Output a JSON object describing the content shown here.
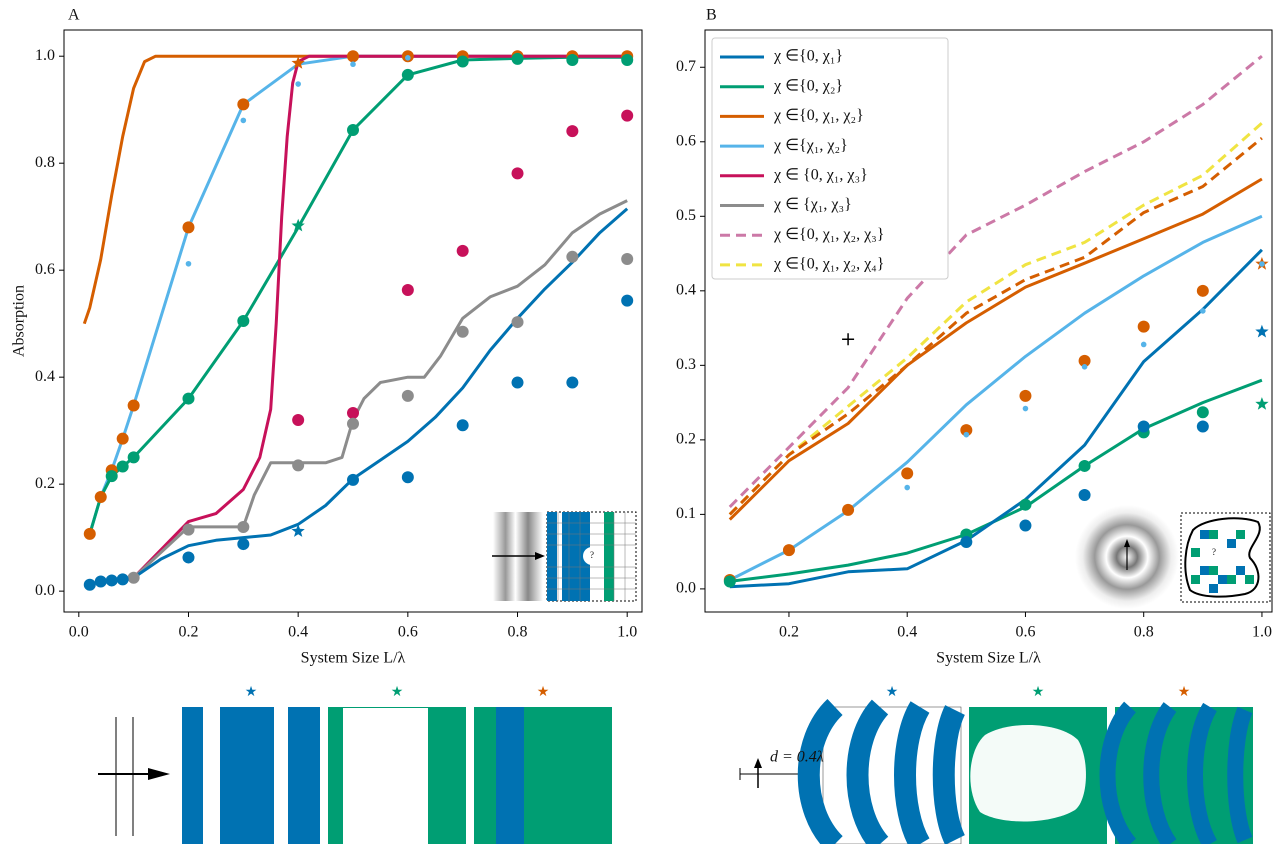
{
  "chart_data": [
    {
      "type": "line",
      "title": "A",
      "xlabel": "System Size L/λ",
      "ylabel": "Absorption",
      "inset_text": "?",
      "xlim": [
        -0.027,
        1.027
      ],
      "ylim": [
        -0.039,
        1.049
      ],
      "xticks": [
        {
          "value": 0,
          "label": "0.0"
        },
        0.2,
        0.4,
        0.6,
        0.8,
        {
          "value": 1,
          "label": "1.0"
        }
      ],
      "yticks": [
        {
          "value": 0,
          "label": "0.0"
        },
        0.2,
        0.4,
        0.6,
        0.8,
        {
          "value": 1,
          "label": "1.0"
        }
      ],
      "series": [
        {
          "kind": "line",
          "color": "#d55e00",
          "x": [
            0.01,
            0.02,
            0.04,
            0.06,
            0.08,
            0.1,
            0.12,
            0.14,
            0.2,
            0.3,
            0.4,
            0.5,
            0.6,
            0.7,
            0.8,
            0.9,
            1.0
          ],
          "values": [
            0.5,
            0.53,
            0.62,
            0.74,
            0.85,
            0.94,
            0.99,
            1.0,
            1.0,
            1.0,
            1.0,
            1.0,
            1.0,
            1.0,
            1.0,
            1.0,
            1.0
          ]
        },
        {
          "kind": "line",
          "color": "#56b4e9",
          "x": [
            0.02,
            0.04,
            0.06,
            0.08,
            0.1,
            0.2,
            0.3,
            0.4,
            0.5,
            0.6,
            0.7,
            0.8,
            0.9,
            1.0
          ],
          "values": [
            0.107,
            0.176,
            0.226,
            0.285,
            0.347,
            0.68,
            0.91,
            0.985,
            1.0,
            1.0,
            1.0,
            1.0,
            1.0,
            1.0
          ]
        },
        {
          "kind": "line",
          "color": "#009e73",
          "x": [
            0.02,
            0.04,
            0.06,
            0.08,
            0.1,
            0.2,
            0.3,
            0.4,
            0.5,
            0.6,
            0.7,
            0.8,
            0.9,
            1.0
          ],
          "values": [
            0.107,
            0.176,
            0.215,
            0.233,
            0.25,
            0.36,
            0.505,
            0.68,
            0.862,
            0.965,
            0.993,
            0.996,
            0.998,
            0.998
          ]
        },
        {
          "kind": "line",
          "color": "#c7115a",
          "x": [
            0.1,
            0.2,
            0.25,
            0.3,
            0.33,
            0.35,
            0.36,
            0.37,
            0.38,
            0.39,
            0.4,
            0.42,
            0.5,
            0.6,
            0.7,
            0.8,
            0.9,
            1.0
          ],
          "values": [
            0.025,
            0.13,
            0.145,
            0.19,
            0.25,
            0.34,
            0.5,
            0.7,
            0.85,
            0.95,
            0.99,
            1.0,
            1.0,
            1.0,
            1.0,
            1.0,
            1.0,
            1.0
          ]
        },
        {
          "kind": "line",
          "color": "#8c8c8c",
          "x": [
            0.1,
            0.2,
            0.3,
            0.32,
            0.35,
            0.45,
            0.48,
            0.5,
            0.52,
            0.55,
            0.6,
            0.63,
            0.66,
            0.7,
            0.75,
            0.8,
            0.85,
            0.9,
            0.95,
            1.0
          ],
          "values": [
            0.025,
            0.12,
            0.12,
            0.18,
            0.24,
            0.24,
            0.25,
            0.32,
            0.36,
            0.39,
            0.4,
            0.4,
            0.44,
            0.51,
            0.55,
            0.57,
            0.61,
            0.67,
            0.705,
            0.73
          ]
        },
        {
          "kind": "line",
          "color": "#0072b2",
          "x": [
            0.02,
            0.04,
            0.06,
            0.08,
            0.1,
            0.15,
            0.2,
            0.25,
            0.3,
            0.35,
            0.4,
            0.45,
            0.5,
            0.55,
            0.6,
            0.65,
            0.7,
            0.75,
            0.8,
            0.85,
            0.9,
            0.95,
            1.0
          ],
          "values": [
            0.012,
            0.018,
            0.02,
            0.022,
            0.025,
            0.06,
            0.085,
            0.095,
            0.1,
            0.105,
            0.125,
            0.16,
            0.21,
            0.245,
            0.28,
            0.325,
            0.38,
            0.45,
            0.51,
            0.565,
            0.615,
            0.67,
            0.715
          ]
        },
        {
          "kind": "dot",
          "color": "#d55e00",
          "x": [
            0.02,
            0.04,
            0.06,
            0.08,
            0.1,
            0.2,
            0.3,
            0.5,
            0.6,
            0.7,
            0.8,
            0.9,
            1.0
          ],
          "values": [
            0.107,
            0.176,
            0.226,
            0.285,
            0.347,
            0.68,
            0.91,
            1.0,
            1.0,
            1.0,
            1.0,
            1.0,
            1.0
          ]
        },
        {
          "kind": "star",
          "color": "#d55e00",
          "x": [
            0.4
          ],
          "values": [
            0.987
          ]
        },
        {
          "kind": "smalldot",
          "color": "#56b4e9",
          "x": [
            0.2,
            0.3,
            0.4,
            0.5,
            0.6
          ],
          "values": [
            0.612,
            0.88,
            0.948,
            0.985,
            0.997
          ]
        },
        {
          "kind": "dot",
          "color": "#009e73",
          "x": [
            0.06,
            0.08,
            0.1,
            0.2,
            0.3,
            0.5,
            0.6,
            0.7,
            0.8,
            0.9,
            1.0
          ],
          "values": [
            0.215,
            0.233,
            0.25,
            0.36,
            0.505,
            0.862,
            0.965,
            0.99,
            0.995,
            0.993,
            0.993
          ]
        },
        {
          "kind": "star",
          "color": "#009e73",
          "x": [
            0.4
          ],
          "values": [
            0.683
          ]
        },
        {
          "kind": "dot",
          "color": "#c7115a",
          "x": [
            0.4,
            0.5,
            0.6,
            0.7,
            0.8,
            0.9,
            1.0
          ],
          "values": [
            0.32,
            0.333,
            0.563,
            0.636,
            0.781,
            0.86,
            0.889
          ]
        },
        {
          "kind": "dot",
          "color": "#8c8c8c",
          "x": [
            0.1,
            0.2,
            0.3,
            0.4,
            0.5,
            0.6,
            0.7,
            0.8,
            0.9,
            1.0
          ],
          "values": [
            0.025,
            0.115,
            0.12,
            0.235,
            0.313,
            0.365,
            0.485,
            0.503,
            0.625,
            0.621
          ]
        },
        {
          "kind": "dot",
          "color": "#0072b2",
          "x": [
            0.02,
            0.04,
            0.06,
            0.08,
            0.2,
            0.3,
            0.5,
            0.6,
            0.7,
            0.8,
            0.9,
            1.0
          ],
          "values": [
            0.012,
            0.018,
            0.02,
            0.022,
            0.063,
            0.088,
            0.208,
            0.213,
            0.31,
            0.39,
            0.39,
            0.543
          ]
        },
        {
          "kind": "star",
          "color": "#0072b2",
          "x": [
            0.4
          ],
          "values": [
            0.112
          ]
        }
      ]
    },
    {
      "type": "line",
      "title": "B",
      "xlabel": "System Size L/λ",
      "inset_text": "?",
      "legend_loc": "upper left",
      "xlim": [
        0.058,
        1.017
      ],
      "ylim": [
        -0.031,
        0.75
      ],
      "xticks": [
        0.2,
        0.4,
        0.6,
        0.8,
        {
          "value": 1,
          "label": "1.0"
        }
      ],
      "yticks": [
        {
          "value": 0,
          "label": "0.0"
        },
        0.1,
        0.2,
        0.3,
        0.4,
        0.5,
        0.6,
        0.7
      ],
      "legend": [
        {
          "name": "χ ∈{0, χ₁}",
          "color": "#0072b2",
          "dash": false
        },
        {
          "name": "χ ∈{0, χ₂}",
          "color": "#009e73",
          "dash": false
        },
        {
          "name": "χ ∈{0, χ₁, χ₂}",
          "color": "#d55e00",
          "dash": false
        },
        {
          "name": "χ ∈{χ₁, χ₂}",
          "color": "#56b4e9",
          "dash": false
        },
        {
          "name": "χ ∈ {0, χ₁, χ₃}",
          "color": "#c7115a",
          "dash": false
        },
        {
          "name": "χ ∈ {χ₁, χ₃}",
          "color": "#8c8c8c",
          "dash": false
        },
        {
          "name": "χ ∈{0, χ₁, χ₂, χ₃}",
          "color": "#cc79a7",
          "dash": true
        },
        {
          "name": "χ ∈{0, χ₁, χ₂, χ₄}",
          "color": "#f0e442",
          "dash": true
        }
      ],
      "series": [
        {
          "kind": "dashed",
          "color": "#cc79a7",
          "x": [
            0.1,
            0.2,
            0.3,
            0.4,
            0.5,
            0.6,
            0.7,
            0.8,
            0.9,
            1.0
          ],
          "values": [
            0.11,
            0.19,
            0.27,
            0.39,
            0.475,
            0.515,
            0.56,
            0.6,
            0.65,
            0.715
          ]
        },
        {
          "kind": "dashed",
          "color": "#f0e442",
          "x": [
            0.1,
            0.2,
            0.3,
            0.4,
            0.5,
            0.6,
            0.7,
            0.8,
            0.9,
            1.0
          ],
          "values": [
            0.1,
            0.18,
            0.245,
            0.31,
            0.385,
            0.435,
            0.465,
            0.515,
            0.555,
            0.625
          ]
        },
        {
          "kind": "dashed",
          "color": "#d55e00",
          "x": [
            0.1,
            0.2,
            0.3,
            0.4,
            0.5,
            0.6,
            0.7,
            0.8,
            0.9,
            1.0
          ],
          "values": [
            0.1,
            0.18,
            0.235,
            0.3,
            0.37,
            0.415,
            0.445,
            0.505,
            0.54,
            0.605
          ]
        },
        {
          "kind": "line",
          "color": "#d55e00",
          "x": [
            0.1,
            0.2,
            0.3,
            0.4,
            0.5,
            0.6,
            0.7,
            0.8,
            0.9,
            1.0
          ],
          "values": [
            0.093,
            0.172,
            0.222,
            0.3,
            0.357,
            0.405,
            0.437,
            0.47,
            0.503,
            0.55
          ]
        },
        {
          "kind": "line",
          "color": "#56b4e9",
          "x": [
            0.1,
            0.2,
            0.3,
            0.4,
            0.5,
            0.6,
            0.7,
            0.8,
            0.9,
            1.0
          ],
          "values": [
            0.012,
            0.052,
            0.105,
            0.17,
            0.247,
            0.312,
            0.37,
            0.42,
            0.465,
            0.5
          ]
        },
        {
          "kind": "line",
          "color": "#009e73",
          "x": [
            0.1,
            0.2,
            0.3,
            0.4,
            0.5,
            0.6,
            0.7,
            0.8,
            0.9,
            1.0
          ],
          "values": [
            0.01,
            0.02,
            0.032,
            0.048,
            0.073,
            0.11,
            0.165,
            0.215,
            0.25,
            0.28
          ]
        },
        {
          "kind": "line",
          "color": "#0072b2",
          "x": [
            0.1,
            0.2,
            0.3,
            0.4,
            0.5,
            0.6,
            0.7,
            0.8,
            0.9,
            1.0
          ],
          "values": [
            0.003,
            0.007,
            0.023,
            0.027,
            0.065,
            0.12,
            0.193,
            0.305,
            0.375,
            0.455
          ]
        },
        {
          "kind": "dot",
          "color": "#d55e00",
          "x": [
            0.1,
            0.2,
            0.3,
            0.4,
            0.5,
            0.6,
            0.7,
            0.8,
            0.9
          ],
          "values": [
            0.012,
            0.052,
            0.106,
            0.155,
            0.213,
            0.259,
            0.306,
            0.352,
            0.4
          ]
        },
        {
          "kind": "star",
          "color": "#d55e00",
          "x": [
            1.0
          ],
          "values": [
            0.436
          ]
        },
        {
          "kind": "smalldot",
          "color": "#56b4e9",
          "x": [
            0.4,
            0.5,
            0.6,
            0.7,
            0.8,
            0.9,
            1.0
          ],
          "values": [
            0.136,
            0.207,
            0.242,
            0.298,
            0.328,
            0.373,
            0.436
          ]
        },
        {
          "kind": "dot",
          "color": "#009e73",
          "x": [
            0.1,
            0.5,
            0.6,
            0.7,
            0.8,
            0.9
          ],
          "values": [
            0.01,
            0.073,
            0.113,
            0.165,
            0.21,
            0.237
          ]
        },
        {
          "kind": "star",
          "color": "#009e73",
          "x": [
            1.0
          ],
          "values": [
            0.248
          ]
        },
        {
          "kind": "dot",
          "color": "#0072b2",
          "x": [
            0.5,
            0.6,
            0.7,
            0.8,
            0.9
          ],
          "values": [
            0.063,
            0.085,
            0.126,
            0.218,
            0.218
          ]
        },
        {
          "kind": "star",
          "color": "#0072b2",
          "x": [
            1.0
          ],
          "values": [
            0.345
          ]
        },
        {
          "kind": "plus",
          "color": "#000000",
          "x": [
            0.3
          ],
          "values": [
            0.335
          ]
        }
      ]
    }
  ],
  "bottom": {
    "scale_label": "d = 0.4λ"
  }
}
